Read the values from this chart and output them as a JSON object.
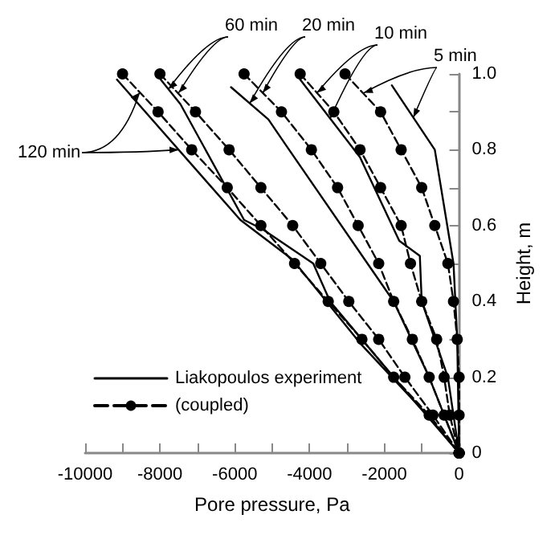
{
  "chart_data": {
    "type": "line",
    "xlabel": "Pore pressure, Pa",
    "ylabel": "Height, m",
    "xlim": [
      -10000,
      0
    ],
    "xticks": [
      -10000,
      {
        "value": -9000,
        "label": null
      },
      -8000,
      {
        "value": -7000,
        "label": null
      },
      -6000,
      {
        "value": -5000,
        "label": null
      },
      -4000,
      {
        "value": -3000,
        "label": null
      },
      -2000,
      {
        "value": -1000,
        "label": null
      },
      0
    ],
    "ylim": [
      0,
      1.0
    ],
    "yticks": [
      0,
      {
        "value": 0.1,
        "label": null
      },
      0.2,
      {
        "value": 0.3,
        "label": null
      },
      0.4,
      {
        "value": 0.5,
        "label": null
      },
      0.6,
      {
        "value": 0.7,
        "label": null
      },
      0.8,
      {
        "value": 0.9,
        "label": null
      },
      {
        "value": 1.0,
        "label": "1.0"
      }
    ],
    "grid": false,
    "legend": "bottom left",
    "annotations": [
      {
        "text": "5 min",
        "x": -2550,
        "y": 0.95
      },
      {
        "text": "10 min",
        "x": -3800,
        "y": 0.95
      },
      {
        "text": "20 min",
        "x": -5250,
        "y": 0.95
      },
      {
        "text": "60 min",
        "x": -7500,
        "y": 0.95
      },
      {
        "text": "120 min",
        "x": -8550,
        "y": 0.95
      }
    ],
    "series": [
      {
        "name": "Liakopoulos experiment",
        "color": "#000000",
        "line_style": "solid",
        "marker": "none",
        "x": [
          -1800,
          -650,
          -150,
          -50,
          0
        ],
        "values": [
          0.97,
          0.8,
          0.5,
          0.3,
          0
        ]
      },
      {
        "color": "#000000",
        "line_style": "solid",
        "marker": "none",
        "x": [
          -4250,
          -2650,
          -1600,
          -1050,
          -1000,
          -300,
          0
        ],
        "values": [
          0.985,
          0.78,
          0.56,
          0.52,
          0.4,
          0.2,
          0
        ]
      },
      {
        "color": "#000000",
        "line_style": "solid",
        "marker": "none",
        "x": [
          -6100,
          -5100,
          -4650,
          -2450,
          -1750,
          -800,
          0
        ],
        "values": [
          0.965,
          0.88,
          0.815,
          0.5,
          0.4,
          0.2,
          0
        ]
      },
      {
        "color": "#000000",
        "line_style": "solid",
        "marker": "none",
        "x": [
          -8100,
          -7450,
          -5750,
          -5250,
          -3900,
          -3450,
          -1750,
          0
        ],
        "values": [
          1.0,
          0.92,
          0.615,
          0.59,
          0.5,
          0.4,
          0.2,
          0
        ]
      },
      {
        "color": "#000000",
        "line_style": "solid",
        "marker": "none",
        "x": [
          -9150,
          -5850,
          -4450,
          -2650,
          -800,
          0
        ],
        "values": [
          0.985,
          0.615,
          0.51,
          0.29,
          0.095,
          0
        ]
      },
      {
        "name": "(coupled)",
        "color": "#000000",
        "line_style": "dashed",
        "marker": "circle",
        "x": [
          -3050,
          -2100,
          -1550,
          -1000,
          -650,
          -300,
          -150,
          -50,
          0,
          0,
          0
        ],
        "values": [
          1.0,
          0.9,
          0.8,
          0.7,
          0.6,
          0.5,
          0.4,
          0.3,
          0.2,
          0.1,
          0
        ]
      },
      {
        "color": "#000000",
        "line_style": "dashed",
        "marker": "circle",
        "x": [
          -4250,
          -3350,
          -2650,
          -2100,
          -1550,
          -1300,
          -1000,
          -600,
          -400,
          -250,
          0
        ],
        "values": [
          1.0,
          0.9,
          0.8,
          0.7,
          0.6,
          0.5,
          0.4,
          0.3,
          0.2,
          0.1,
          0
        ]
      },
      {
        "color": "#000000",
        "line_style": "dashed",
        "marker": "circle",
        "x": [
          -5750,
          -4750,
          -3950,
          -3250,
          -2700,
          -2150,
          -1750,
          -1250,
          -800,
          -400,
          0
        ],
        "values": [
          1.0,
          0.9,
          0.8,
          0.7,
          0.6,
          0.5,
          0.4,
          0.3,
          0.2,
          0.1,
          0
        ]
      },
      {
        "color": "#000000",
        "line_style": "dashed",
        "marker": "circle",
        "x": [
          -8000,
          -7050,
          -6150,
          -5300,
          -4450,
          -3700,
          -2950,
          -2150,
          -1450,
          -700,
          0
        ],
        "values": [
          1.0,
          0.9,
          0.8,
          0.7,
          0.6,
          0.5,
          0.4,
          0.3,
          0.2,
          0.1,
          0
        ]
      },
      {
        "color": "#000000",
        "line_style": "dashed",
        "marker": "circle",
        "x": [
          -9000,
          -8050,
          -7150,
          -6200,
          -5300,
          -4400,
          -3500,
          -2600,
          -1750,
          -800,
          0
        ],
        "values": [
          1.0,
          0.9,
          0.8,
          0.7,
          0.6,
          0.5,
          0.4,
          0.3,
          0.2,
          0.1,
          0
        ]
      }
    ]
  }
}
